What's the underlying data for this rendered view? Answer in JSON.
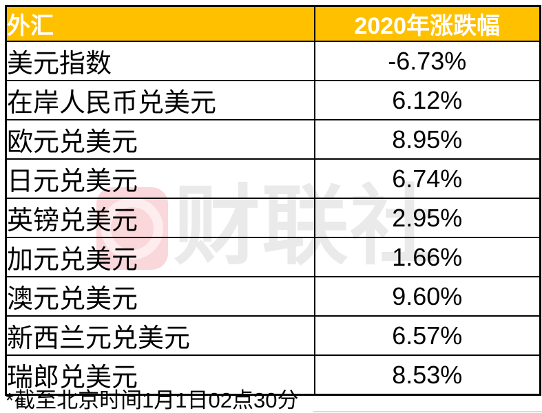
{
  "colors": {
    "accent": "#FFC000",
    "border": "#000000",
    "watermark_red": "#E43648",
    "watermark_gray": "#ECECEC"
  },
  "watermark": {
    "text": "财联社",
    "logo": "cailianshe-logo"
  },
  "table": {
    "header": {
      "col1": "外汇",
      "col2": "2020年涨跌幅"
    },
    "rows": [
      {
        "name": "美元指数",
        "value": "-6.73%"
      },
      {
        "name": "在岸人民币兑美元",
        "value": "6.12%"
      },
      {
        "name": "欧元兑美元",
        "value": "8.95%"
      },
      {
        "name": "日元兑美元",
        "value": "6.74%"
      },
      {
        "name": "英镑兑美元",
        "value": "2.95%"
      },
      {
        "name": "加元兑美元",
        "value": "1.66%"
      },
      {
        "name": "澳元兑美元",
        "value": "9.60%"
      },
      {
        "name": "新西兰元兑美元",
        "value": "6.57%"
      },
      {
        "name": "瑞郎兑美元",
        "value": "8.53%"
      }
    ]
  },
  "footnote": "*截至北京时间1月1日02点30分",
  "chart_data": {
    "type": "table",
    "title": "",
    "columns": [
      "外汇",
      "2020年涨跌幅"
    ],
    "categories": [
      "美元指数",
      "在岸人民币兑美元",
      "欧元兑美元",
      "日元兑美元",
      "英镑兑美元",
      "加元兑美元",
      "澳元兑美元",
      "新西兰元兑美元",
      "瑞郎兑美元"
    ],
    "values": [
      -6.73,
      6.12,
      8.95,
      6.74,
      2.95,
      1.66,
      9.6,
      6.57,
      8.53
    ],
    "unit": "%",
    "footnote": "*截至北京时间1月1日02点30分",
    "source_watermark": "财联社"
  }
}
